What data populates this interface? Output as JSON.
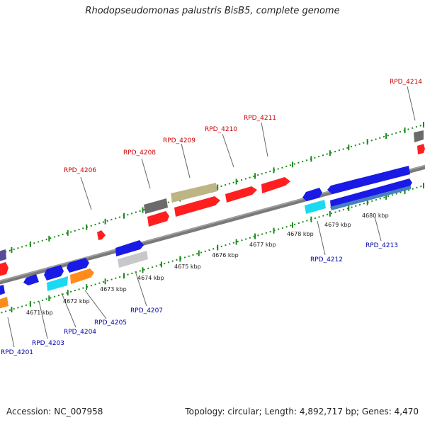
{
  "title": "Rhodopseudomonas palustris BisB5, complete genome",
  "accession": "Accession: NC_007958",
  "topology": "Topology: circular; Length: 4,892,717 bp; Genes: 4,470",
  "colors": {
    "red": "#ff1f1f",
    "blue": "#1a1ae6",
    "gray": "#6b6b6b",
    "olive": "#bdb585",
    "cyan": "#1ad9f0",
    "orange": "#ff8c1a",
    "lightgray": "#c8c8c8",
    "steel": "#4a80c0",
    "purple": "#5a4a9a",
    "track": "#808080",
    "ticks": "#1a8a1a",
    "label_red": "#cc0000",
    "label_blue": "#0000aa"
  },
  "scale_labels": [
    "4671 kbp",
    "4672 kbp",
    "4673 kbp",
    "4674 kbp",
    "4675 kbp",
    "4676 kbp",
    "4677 kbp",
    "4678 kbp",
    "4679 kbp",
    "4680 kbp"
  ],
  "gene_labels_top": [
    "RPD_4206",
    "RPD_4208",
    "RPD_4209",
    "RPD_4210",
    "RPD_4211",
    "RPD_4214"
  ],
  "gene_labels_bottom": [
    "RPD_4201",
    "RPD_4203",
    "RPD_4204",
    "RPD_4205",
    "RPD_4207",
    "RPD_4212",
    "RPD_4213"
  ]
}
